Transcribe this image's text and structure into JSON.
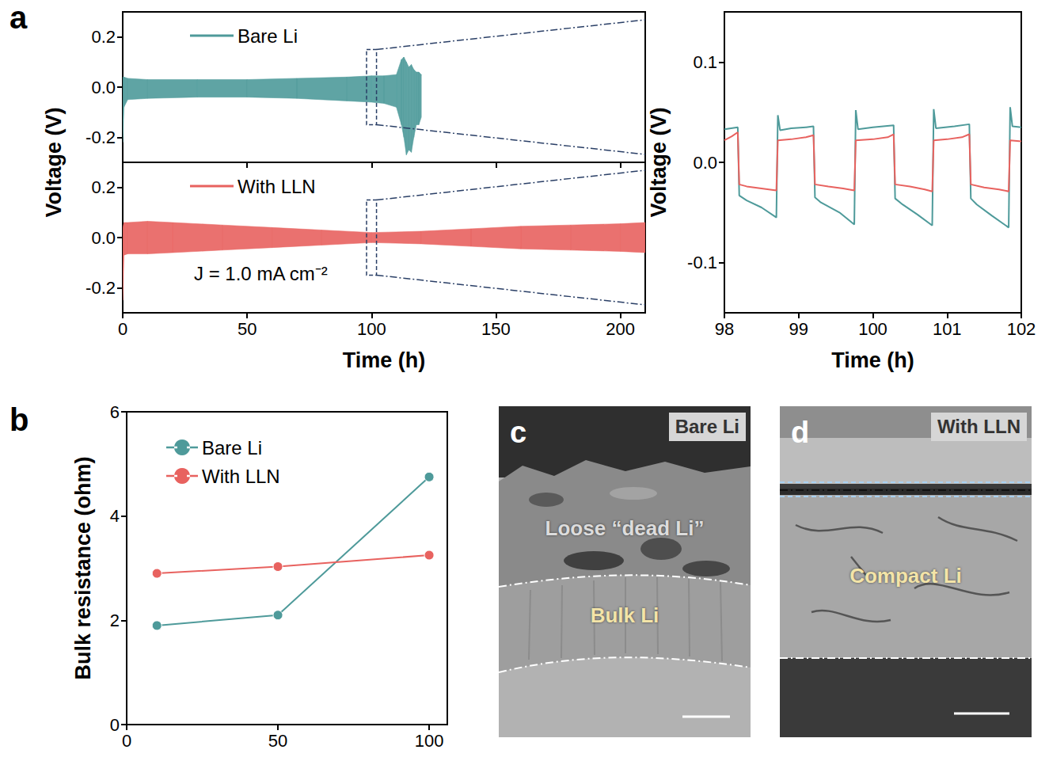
{
  "chart_data": [
    {
      "panel": "a",
      "type": "band",
      "x_label": "Time (h)",
      "y_label": "Voltage (V)",
      "xlim": [
        0,
        210
      ],
      "xticks": [
        0,
        50,
        100,
        150,
        200
      ],
      "ylim": [
        -0.3,
        0.3
      ],
      "yticks": [
        -0.2,
        {
          "value": 0,
          "label": "0.0"
        },
        0.2
      ],
      "annotation": "J = 1.0 mA cm⁻²",
      "legend": "upper left",
      "subplots": [
        {
          "tick_labels": "y",
          "series": [
            {
              "name": "Bare Li",
              "color": "#4e9a9a",
              "x": [
                0,
                0.5,
                2,
                10,
                30,
                50,
                70,
                90,
                100,
                105,
                110,
                112,
                113,
                114,
                115,
                116,
                117,
                118,
                119,
                120
              ],
              "upper": [
                0.04,
                0.04,
                0.035,
                0.03,
                0.03,
                0.03,
                0.035,
                0.04,
                0.045,
                0.045,
                0.05,
                0.11,
                0.12,
                0.1,
                0.08,
                0.09,
                0.07,
                0.06,
                0.06,
                0.05
              ],
              "lower": [
                -0.22,
                -0.08,
                -0.05,
                -0.045,
                -0.04,
                -0.04,
                -0.045,
                -0.055,
                -0.06,
                -0.065,
                -0.08,
                -0.15,
                -0.2,
                -0.27,
                -0.25,
                -0.26,
                -0.2,
                -0.15,
                -0.15,
                -0.12
              ]
            }
          ]
        },
        {
          "series": [
            {
              "name": "With LLN",
              "color": "#e8625f",
              "x": [
                0,
                0.5,
                2,
                10,
                20,
                40,
                60,
                80,
                100,
                120,
                140,
                160,
                180,
                200,
                210
              ],
              "upper": [
                0.04,
                0.06,
                0.06,
                0.065,
                0.06,
                0.05,
                0.04,
                0.03,
                0.02,
                0.025,
                0.035,
                0.045,
                0.05,
                0.055,
                0.06
              ],
              "lower": [
                -0.25,
                -0.07,
                -0.065,
                -0.065,
                -0.06,
                -0.05,
                -0.04,
                -0.03,
                -0.02,
                -0.025,
                -0.035,
                -0.045,
                -0.05,
                -0.055,
                -0.06
              ]
            }
          ]
        }
      ]
    },
    {
      "type": "line",
      "x_label": "Time (h)",
      "y_label": "Voltage (V)",
      "xlim": [
        98,
        102
      ],
      "xticks": [
        98,
        99,
        100,
        101,
        102
      ],
      "ylim": [
        -0.15,
        0.15
      ],
      "yticks": [
        -0.1,
        {
          "value": 0,
          "label": "0.0"
        },
        0.1
      ],
      "series": [
        {
          "name": "Bare Li",
          "color": "#4e9a9a",
          "x": [
            98.0,
            98.18,
            98.2,
            98.3,
            98.5,
            98.7,
            98.72,
            98.75,
            98.9,
            99.1,
            99.2,
            99.22,
            99.3,
            99.55,
            99.75,
            99.77,
            99.8,
            100.0,
            100.28,
            100.3,
            100.4,
            100.6,
            100.8,
            100.82,
            100.85,
            101.1,
            101.3,
            101.32,
            101.4,
            101.6,
            101.83,
            101.85,
            101.88,
            102.0
          ],
          "values": [
            0.033,
            0.035,
            -0.033,
            -0.038,
            -0.045,
            -0.055,
            0.047,
            0.032,
            0.034,
            0.035,
            0.036,
            -0.035,
            -0.04,
            -0.05,
            -0.062,
            0.052,
            0.033,
            0.035,
            0.037,
            -0.036,
            -0.042,
            -0.052,
            -0.063,
            0.053,
            0.034,
            0.036,
            0.038,
            -0.036,
            -0.042,
            -0.053,
            -0.065,
            0.055,
            0.036,
            0.035
          ]
        },
        {
          "name": "With LLN",
          "color": "#e8625f",
          "x": [
            98.0,
            98.1,
            98.18,
            98.2,
            98.3,
            98.5,
            98.7,
            98.72,
            98.9,
            99.1,
            99.2,
            99.22,
            99.4,
            99.6,
            99.75,
            99.77,
            100.0,
            100.2,
            100.28,
            100.3,
            100.5,
            100.7,
            100.8,
            100.82,
            101.0,
            101.2,
            101.3,
            101.32,
            101.5,
            101.7,
            101.83,
            101.85,
            102.0
          ],
          "values": [
            0.022,
            0.026,
            0.03,
            -0.022,
            -0.024,
            -0.026,
            -0.028,
            0.022,
            0.023,
            0.025,
            0.027,
            -0.022,
            -0.024,
            -0.026,
            -0.028,
            0.022,
            0.023,
            0.025,
            0.028,
            -0.022,
            -0.024,
            -0.027,
            -0.029,
            0.022,
            0.023,
            0.025,
            0.028,
            -0.022,
            -0.025,
            -0.027,
            -0.029,
            0.022,
            0.021
          ]
        }
      ]
    },
    {
      "panel": "b",
      "type": "line",
      "y_label": "Bulk resistance (ohm)",
      "xlim": [
        0,
        106
      ],
      "xticks": [
        0,
        50,
        100
      ],
      "ylim": [
        0,
        6
      ],
      "yticks": [
        0,
        2,
        4,
        6
      ],
      "legend": "upper left",
      "marker": "circle",
      "series": [
        {
          "name": "Bare Li",
          "color": "#4e9a9a",
          "x": [
            10,
            50,
            100
          ],
          "values": [
            1.9,
            2.1,
            4.75
          ]
        },
        {
          "name": "With LLN",
          "color": "#e8625f",
          "x": [
            10,
            50,
            100
          ],
          "values": [
            2.9,
            3.03,
            3.25
          ]
        }
      ]
    }
  ],
  "images": [
    {
      "panel": "c",
      "tag": "Bare Li",
      "regions": [
        "Loose “dead Li”",
        "Bulk Li"
      ]
    },
    {
      "panel": "d",
      "tag": "With LLN",
      "regions": [
        "Compact Li"
      ]
    }
  ]
}
